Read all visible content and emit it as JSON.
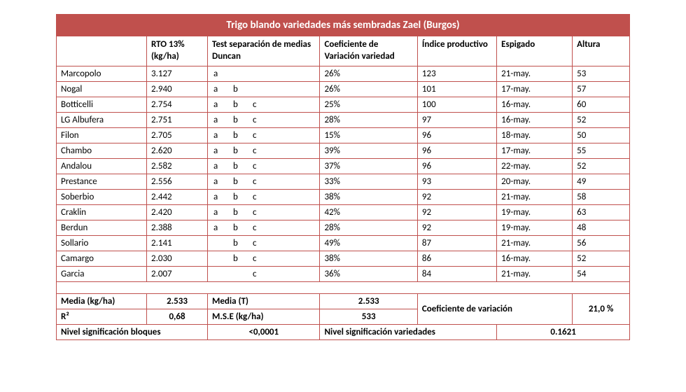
{
  "title": "Trigo blando variedades más sembradas Zael (Burgos)",
  "headers": {
    "c0": "",
    "c1": "RTO 13% (kg/ha)",
    "c2": "Test separación de medias Duncan",
    "c3": "Coeficiente de Variación variedad",
    "c4": "Índice productivo",
    "c5": "Espigado",
    "c6": "Altura"
  },
  "rows": [
    {
      "name": "Marcopolo",
      "rto": "3.127",
      "d": [
        "a",
        "",
        ""
      ],
      "cv": "26%",
      "ip": "123",
      "esp": "21-may.",
      "alt": "53"
    },
    {
      "name": "Nogal",
      "rto": "2.940",
      "d": [
        "a",
        "b",
        ""
      ],
      "cv": "26%",
      "ip": "101",
      "esp": "17-may.",
      "alt": "57"
    },
    {
      "name": "Botticelli",
      "rto": "2.754",
      "d": [
        "a",
        "b",
        "c"
      ],
      "cv": "25%",
      "ip": "100",
      "esp": "16-may.",
      "alt": "60"
    },
    {
      "name": "LG Albufera",
      "rto": "2.751",
      "d": [
        "a",
        "b",
        "c"
      ],
      "cv": "28%",
      "ip": "97",
      "esp": "16-may.",
      "alt": "52"
    },
    {
      "name": "Filon",
      "rto": "2.705",
      "d": [
        "a",
        "b",
        "c"
      ],
      "cv": "15%",
      "ip": "96",
      "esp": "18-may.",
      "alt": "50"
    },
    {
      "name": "Chambo",
      "rto": "2.620",
      "d": [
        "a",
        "b",
        "c"
      ],
      "cv": "39%",
      "ip": "96",
      "esp": "17-may.",
      "alt": "55"
    },
    {
      "name": "Andalou",
      "rto": "2.582",
      "d": [
        "a",
        "b",
        "c"
      ],
      "cv": "37%",
      "ip": "96",
      "esp": "22-may.",
      "alt": "52"
    },
    {
      "name": "Prestance",
      "rto": "2.556",
      "d": [
        "a",
        "b",
        "c"
      ],
      "cv": "33%",
      "ip": "93",
      "esp": "20-may.",
      "alt": "49"
    },
    {
      "name": "Soberbio",
      "rto": "2.442",
      "d": [
        "a",
        "b",
        "c"
      ],
      "cv": "38%",
      "ip": "92",
      "esp": "21-may.",
      "alt": "58"
    },
    {
      "name": "Craklin",
      "rto": "2.420",
      "d": [
        "a",
        "b",
        "c"
      ],
      "cv": "42%",
      "ip": "92",
      "esp": "19-may.",
      "alt": "63"
    },
    {
      "name": "Berdun",
      "rto": "2.388",
      "d": [
        "a",
        "b",
        "c"
      ],
      "cv": "28%",
      "ip": "92",
      "esp": "19-may.",
      "alt": "48"
    },
    {
      "name": "Sollario",
      "rto": "2.141",
      "d": [
        "",
        "b",
        "c"
      ],
      "cv": "49%",
      "ip": "87",
      "esp": "21-may.",
      "alt": "56"
    },
    {
      "name": "Camargo",
      "rto": "2.030",
      "d": [
        "",
        "b",
        "c"
      ],
      "cv": "38%",
      "ip": "86",
      "esp": "16-may.",
      "alt": "52"
    },
    {
      "name": "Garcia",
      "rto": "2.007",
      "d": [
        "",
        "",
        "c"
      ],
      "cv": "36%",
      "ip": "84",
      "esp": "21-may.",
      "alt": "54"
    }
  ],
  "summary": {
    "media_label": "Media (kg/ha)",
    "media_val": "2.533",
    "mediaT_label": "Media (T)",
    "mediaT_val": "2.533",
    "coef_var_label": "Coeficiente de variación",
    "coef_var_val": "21,0 %",
    "r2_label": "R²",
    "r2_val": "0,68",
    "mse_label": "M.S.E (kg/ha)",
    "mse_val": "533",
    "nsb_label": "Nivel significación bloques",
    "nsb_val": "<0,0001",
    "nsv_label": "Nivel significación variedades",
    "nsv_val": "0.1621"
  },
  "style": {
    "accent": "#c0504d",
    "bg": "#ffffff",
    "font_size_body": 13,
    "font_size_title": 15
  }
}
